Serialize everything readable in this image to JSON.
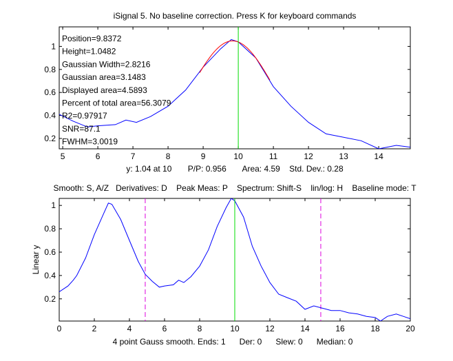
{
  "chart_data": [
    {
      "type": "line",
      "title": "iSignal 5. No baseline correction.  Press K for keyboard commands",
      "xlim": [
        4.9,
        14.9
      ],
      "ylim": [
        0.11,
        1.17
      ],
      "xticks": [
        5,
        6,
        7,
        8,
        9,
        10,
        11,
        12,
        13,
        14
      ],
      "yticks": [
        0.2,
        0.4,
        0.6,
        0.8,
        1
      ],
      "xlabel": "y: 1.04 at 10       P/P: 0.956       Area: 4.59    Std. Dev.: 0.28",
      "cursor_x": 10,
      "annotations": [
        "Position=9.8372",
        "Height=1.0482",
        "Gaussian Width=2.8216",
        "Gaussian area=3.1483",
        "Displayed area=4.5893",
        "Percent of total area=56.3079",
        "R2=0.97917",
        "SNR=87.1",
        "FWHM=3.0019"
      ],
      "fit": {
        "type": "gaussian",
        "position": 9.8372,
        "height": 1.0482,
        "width": 2.8216,
        "range": [
          8.9,
          10.9
        ]
      }
    },
    {
      "type": "line",
      "title": "Smooth: S, A/Z   Derivatives: D    Peak Meas: P    Spectrum: Shift-S    lin/log: H    Baseline mode: T",
      "xlim": [
        0,
        20
      ],
      "ylim": [
        0.01,
        1.06
      ],
      "xticks": [
        0,
        2,
        4,
        6,
        8,
        10,
        12,
        14,
        16,
        18,
        20
      ],
      "yticks": [
        0.2,
        0.4,
        0.6,
        0.8,
        1
      ],
      "ylabel": "Linear y",
      "xlabel": "4 point Gauss smooth. Ends: 1      Der: 0      Slew: 0      Median: 0",
      "cursor_x": 10,
      "range_markers": [
        4.9,
        14.9
      ]
    }
  ],
  "signal": {
    "x": [
      0,
      0.5,
      0.8,
      1,
      1.5,
      2,
      2.5,
      2.8,
      3,
      3.5,
      4,
      4.5,
      4.9,
      5.3,
      5.7,
      6,
      6.5,
      6.8,
      7.1,
      7.5,
      8,
      8.5,
      9,
      9.5,
      9.8,
      10,
      10.5,
      11,
      11.5,
      12,
      12.5,
      13,
      13.5,
      14,
      14.5,
      15,
      15.5,
      16,
      16.5,
      17,
      17.5,
      18,
      18.3,
      18.7,
      19.2,
      19.6,
      20
    ],
    "y": [
      0.26,
      0.31,
      0.36,
      0.4,
      0.55,
      0.75,
      0.92,
      1.02,
      1.01,
      0.88,
      0.7,
      0.52,
      0.41,
      0.35,
      0.3,
      0.31,
      0.32,
      0.36,
      0.34,
      0.39,
      0.48,
      0.62,
      0.82,
      0.98,
      1.06,
      1.04,
      0.9,
      0.65,
      0.48,
      0.34,
      0.24,
      0.21,
      0.18,
      0.11,
      0.14,
      0.12,
      0.1,
      0.1,
      0.08,
      0.07,
      0.05,
      0.04,
      0.01,
      0.05,
      0.07,
      0.05,
      0.03
    ]
  },
  "colors": {
    "signal": "#0000ff",
    "fit": "#ff0000",
    "cursor": "#00dd00",
    "markers": "#dd00dd"
  }
}
